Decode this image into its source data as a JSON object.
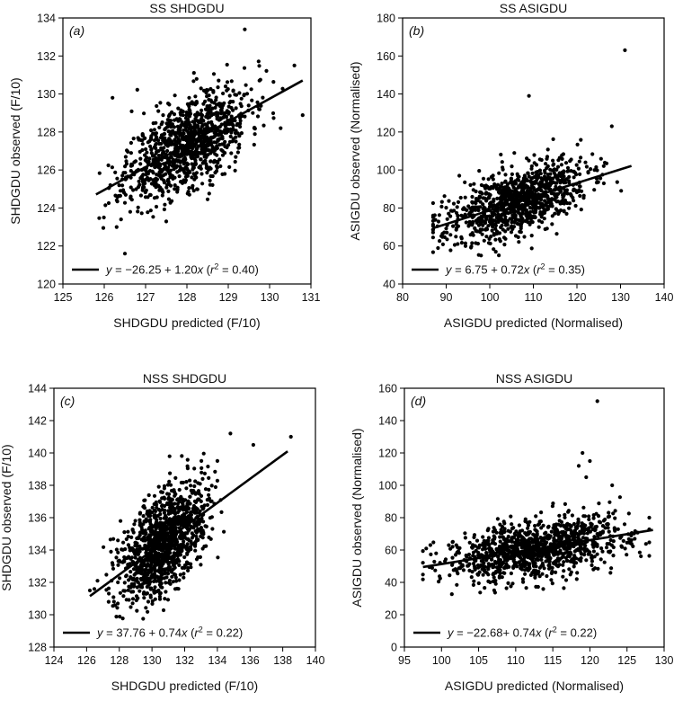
{
  "chart_data": [
    {
      "type": "scatter",
      "title": "SS SHDGDU",
      "panel_letter": "(a)",
      "xlabel": "SHDGDU predicted (F/10)",
      "ylabel": "SHDGDU observed (F/10)",
      "xlim": [
        125,
        131
      ],
      "ylim": [
        120,
        134
      ],
      "xticks": [
        "125",
        "126",
        "127",
        "128",
        "129",
        "130",
        "131"
      ],
      "yticks": [
        "120",
        "122",
        "124",
        "126",
        "128",
        "130",
        "132",
        "134"
      ],
      "points": {
        "count": 1100,
        "x_center": 128.0,
        "x_sd": 0.75,
        "x_min": 125.8,
        "x_max": 130.8,
        "y_sd": 1.15,
        "seed": 11
      },
      "outliers": [
        [
          126.2,
          129.8
        ],
        [
          126.5,
          121.6
        ],
        [
          129.4,
          133.4
        ],
        [
          130.6,
          131.5
        ],
        [
          126.3,
          123.0
        ]
      ],
      "fit": {
        "intercept": -26.25,
        "slope": 1.2,
        "x_from": 125.8,
        "x_to": 130.8
      },
      "legend": {
        "lead": "y",
        "eq": "= −26.25 + 1.20",
        "xvar": "x",
        "paren_open": " (",
        "rvar": "r",
        "sq": "2",
        "rval": " = 0.40)"
      }
    },
    {
      "type": "scatter",
      "title": "SS ASIGDU",
      "panel_letter": "(b)",
      "xlabel": "ASIGDU predicted (Normalised)",
      "ylabel": "ASIGDU observed (Normalised)",
      "xlim": [
        80,
        140
      ],
      "ylim": [
        40,
        180
      ],
      "xticks": [
        "80",
        "90",
        "100",
        "110",
        "120",
        "130",
        "140"
      ],
      "yticks": [
        "40",
        "60",
        "80",
        "100",
        "120",
        "140",
        "160",
        "180"
      ],
      "points": {
        "count": 1000,
        "x_center": 106,
        "x_sd": 8.0,
        "x_min": 87,
        "x_max": 132,
        "y_sd": 8.5,
        "seed": 23
      },
      "outliers": [
        [
          131,
          163
        ],
        [
          109,
          139
        ],
        [
          128,
          123
        ],
        [
          93,
          97
        ],
        [
          98,
          55
        ]
      ],
      "fit": {
        "intercept": 6.75,
        "slope": 0.72,
        "x_from": 87,
        "x_to": 132.5
      },
      "legend": {
        "lead": "y",
        "eq": "= 6.75 + 0.72",
        "xvar": "x",
        "paren_open": " (",
        "rvar": "r",
        "sq": "2",
        "rval": " = 0.35)"
      }
    },
    {
      "type": "scatter",
      "title": "NSS SHDGDU",
      "panel_letter": "(c)",
      "xlabel": "SHDGDU predicted (F/10)",
      "ylabel": "SHDGDU observed (F/10)",
      "xlim": [
        124,
        140
      ],
      "ylim": [
        128,
        144
      ],
      "xticks": [
        "124",
        "126",
        "128",
        "130",
        "132",
        "134",
        "136",
        "138",
        "140"
      ],
      "yticks": [
        "128",
        "130",
        "132",
        "134",
        "136",
        "138",
        "140",
        "142",
        "144"
      ],
      "points": {
        "count": 1200,
        "x_center": 130.7,
        "x_sd": 1.3,
        "x_min": 126.2,
        "x_max": 138,
        "y_sd": 1.5,
        "seed": 37
      },
      "outliers": [
        [
          138.5,
          141.0
        ],
        [
          130.5,
          129.3
        ],
        [
          136.2,
          140.5
        ],
        [
          134.8,
          141.2
        ],
        [
          126.2,
          131.5
        ]
      ],
      "fit": {
        "intercept": 37.76,
        "slope": 0.74,
        "x_from": 126.2,
        "x_to": 138.3
      },
      "legend": {
        "lead": "y",
        "eq": "= 37.76 + 0.74",
        "xvar": "x",
        "paren_open": " (",
        "rvar": "r",
        "sq": "2",
        "rval": " = 0.22)"
      }
    },
    {
      "type": "scatter",
      "title": "NSS ASIGDU",
      "panel_letter": "(d)",
      "xlabel": "ASIGDU predicted (Normalised)",
      "ylabel": "ASIGDU observed (Normalised)",
      "xlim": [
        95,
        130
      ],
      "ylim": [
        0,
        160
      ],
      "xticks": [
        "95",
        "100",
        "105",
        "110",
        "115",
        "120",
        "125",
        "130"
      ],
      "yticks": [
        "0",
        "20",
        "40",
        "60",
        "80",
        "100",
        "120",
        "140",
        "160"
      ],
      "points": {
        "count": 1100,
        "x_center": 113,
        "x_sd": 6.0,
        "x_min": 97.5,
        "x_max": 128,
        "y_sd": 9.0,
        "seed": 53
      },
      "outliers": [
        [
          121,
          152
        ],
        [
          119,
          120
        ],
        [
          120,
          115
        ],
        [
          118.5,
          112
        ],
        [
          123,
          100
        ],
        [
          119.5,
          105
        ]
      ],
      "fit": {
        "intercept": -22.68,
        "slope": 0.74,
        "x_from": 97.5,
        "x_to": 128.5
      },
      "legend": {
        "lead": "y",
        "eq": "= −22.68+ 0.74",
        "xvar": "x",
        "paren_open": " (",
        "rvar": "r",
        "sq": "2",
        "rval": " = 0.22)"
      }
    }
  ]
}
